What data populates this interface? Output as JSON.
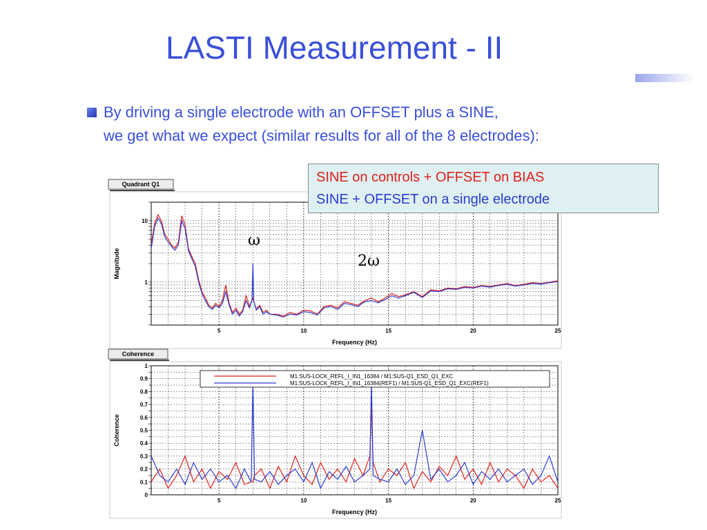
{
  "slide": {
    "title": "LASTI Measurement - II",
    "bullet_line1": "By driving a single electrode with an OFFSET plus a SINE,",
    "bullet_line2": "we get what we expect (similar results for all of the 8 electrodes):",
    "accent_color": "#3a4fd8"
  },
  "legend_box": {
    "line1": "SINE on controls  +  OFFSET on BIAS",
    "line2": "SINE + OFFSET on a single electrode",
    "line1_color": "#e0201b",
    "line2_color": "#2a3cd0",
    "background": "#dff0f2"
  },
  "annotations": {
    "omega": "ω",
    "two_omega": "2ω"
  },
  "chart_data": [
    {
      "type": "line",
      "tab": "Quadrant Q1",
      "xlabel": "Frequency (Hz)",
      "ylabel": "Magnitude",
      "xlim": [
        1,
        25
      ],
      "ylim": [
        0.2,
        20
      ],
      "yscale": "log",
      "grid": true,
      "x_ticks": [
        5,
        10,
        15,
        20,
        25
      ],
      "y_ticks": [
        {
          "v": 10,
          "label": "10"
        },
        {
          "v": 1,
          "label": "1"
        }
      ],
      "series": [
        {
          "color": "#e0201b",
          "x": [
            1.0,
            1.2,
            1.4,
            1.6,
            1.8,
            2.0,
            2.2,
            2.4,
            2.6,
            2.8,
            3.0,
            3.2,
            3.4,
            3.6,
            3.8,
            4.0,
            4.2,
            4.4,
            4.6,
            4.8,
            5.0,
            5.2,
            5.4,
            5.6,
            5.8,
            6.0,
            6.2,
            6.4,
            6.6,
            6.8,
            7.0,
            7.2,
            7.4,
            7.6,
            7.8,
            8.0,
            8.4,
            8.8,
            9.2,
            9.6,
            10.0,
            10.4,
            10.8,
            11.2,
            11.6,
            12.0,
            12.4,
            12.8,
            13.2,
            13.6,
            14.0,
            14.4,
            14.8,
            15.2,
            15.6,
            16.0,
            16.5,
            17.0,
            17.5,
            18.0,
            18.5,
            19.0,
            19.5,
            20.0,
            20.5,
            21.0,
            21.5,
            22.0,
            22.5,
            23.0,
            23.5,
            24.0,
            24.5,
            25.0
          ],
          "values": [
            4.0,
            9.0,
            12.5,
            10.0,
            6.0,
            5.0,
            4.0,
            3.6,
            4.5,
            12.0,
            8.5,
            3.5,
            2.6,
            2.0,
            1.1,
            0.7,
            0.55,
            0.42,
            0.38,
            0.45,
            0.4,
            0.5,
            0.9,
            0.45,
            0.32,
            0.38,
            0.3,
            0.35,
            0.6,
            0.4,
            0.55,
            0.36,
            0.42,
            0.32,
            0.35,
            0.3,
            0.3,
            0.28,
            0.32,
            0.3,
            0.35,
            0.34,
            0.3,
            0.4,
            0.42,
            0.38,
            0.48,
            0.45,
            0.42,
            0.5,
            0.55,
            0.48,
            0.55,
            0.65,
            0.58,
            0.62,
            0.7,
            0.58,
            0.75,
            0.72,
            0.8,
            0.78,
            0.85,
            0.82,
            0.88,
            0.85,
            0.9,
            0.95,
            0.88,
            0.92,
            0.98,
            0.95,
            1.0,
            1.05
          ]
        },
        {
          "color": "#2a3cd0",
          "x": [
            1.0,
            1.2,
            1.4,
            1.6,
            1.8,
            2.0,
            2.2,
            2.4,
            2.6,
            2.8,
            3.0,
            3.2,
            3.4,
            3.6,
            3.8,
            4.0,
            4.2,
            4.4,
            4.6,
            4.8,
            5.0,
            5.2,
            5.4,
            5.6,
            5.8,
            6.0,
            6.2,
            6.4,
            6.6,
            6.8,
            6.95,
            7.0,
            7.05,
            7.2,
            7.4,
            7.6,
            7.8,
            8.0,
            8.4,
            8.8,
            9.2,
            9.6,
            10.0,
            10.4,
            10.8,
            11.2,
            11.6,
            12.0,
            12.4,
            12.8,
            13.2,
            13.6,
            14.0,
            14.4,
            14.8,
            15.2,
            15.6,
            16.0,
            16.5,
            17.0,
            17.5,
            18.0,
            18.5,
            19.0,
            19.5,
            20.0,
            20.5,
            21.0,
            21.5,
            22.0,
            22.5,
            23.0,
            23.5,
            24.0,
            24.5,
            25.0
          ],
          "values": [
            3.5,
            8.0,
            11.0,
            9.0,
            5.5,
            4.5,
            3.8,
            3.3,
            4.0,
            10.0,
            7.5,
            3.2,
            2.4,
            1.8,
            1.0,
            0.65,
            0.5,
            0.4,
            0.36,
            0.42,
            0.38,
            0.45,
            0.7,
            0.42,
            0.3,
            0.35,
            0.28,
            0.33,
            0.5,
            0.38,
            0.5,
            2.0,
            0.5,
            0.35,
            0.4,
            0.3,
            0.33,
            0.3,
            0.29,
            0.27,
            0.3,
            0.29,
            0.33,
            0.32,
            0.29,
            0.38,
            0.4,
            0.36,
            0.45,
            0.43,
            0.4,
            0.48,
            0.5,
            0.46,
            0.52,
            0.6,
            0.55,
            0.6,
            0.68,
            0.56,
            0.72,
            0.7,
            0.78,
            0.76,
            0.82,
            0.8,
            0.86,
            0.83,
            0.88,
            0.92,
            0.86,
            0.9,
            0.95,
            0.93,
            0.98,
            1.02
          ]
        }
      ]
    },
    {
      "type": "line",
      "tab": "Coherence",
      "xlabel": "Frequency (Hz)",
      "ylabel": "Coherence",
      "xlim": [
        1,
        25
      ],
      "ylim": [
        0,
        1
      ],
      "grid": true,
      "x_ticks": [
        5,
        10,
        15,
        20,
        25
      ],
      "y_ticks": [
        {
          "v": 1,
          "label": "1"
        },
        {
          "v": 0.9,
          "label": "0.9"
        },
        {
          "v": 0.8,
          "label": "0.8"
        },
        {
          "v": 0.7,
          "label": "0.7"
        },
        {
          "v": 0.6,
          "label": "0.6"
        },
        {
          "v": 0.5,
          "label": "0.5"
        },
        {
          "v": 0.4,
          "label": "0.4"
        },
        {
          "v": 0.3,
          "label": "0.3"
        },
        {
          "v": 0.2,
          "label": "0.2"
        },
        {
          "v": 0.1,
          "label": "0.1"
        },
        {
          "v": 0,
          "label": "0"
        }
      ],
      "legend_position": "top",
      "series": [
        {
          "name": "M1:SUS-LOCK_REFL_I_IN1_16384 / M1:SUS-Q1_ESD_Q1_EXC",
          "color": "#e0201b",
          "x": [
            1.0,
            1.5,
            2.0,
            2.5,
            3.0,
            3.5,
            4.0,
            4.5,
            5.0,
            5.5,
            6.0,
            6.5,
            6.9,
            7.0,
            7.1,
            7.5,
            8.0,
            8.5,
            9.0,
            9.5,
            10.0,
            10.5,
            11.0,
            11.5,
            12.0,
            12.5,
            13.0,
            13.5,
            13.9,
            14.0,
            14.1,
            14.5,
            15.0,
            15.5,
            16.0,
            16.5,
            17.0,
            17.5,
            18.0,
            18.5,
            19.0,
            19.5,
            20.0,
            20.5,
            21.0,
            21.5,
            22.0,
            22.5,
            23.0,
            23.5,
            24.0,
            24.5,
            25.0
          ],
          "values": [
            0.1,
            0.2,
            0.05,
            0.15,
            0.3,
            0.1,
            0.2,
            0.05,
            0.18,
            0.12,
            0.25,
            0.08,
            0.1,
            0.1,
            0.15,
            0.2,
            0.05,
            0.22,
            0.1,
            0.3,
            0.15,
            0.08,
            0.25,
            0.12,
            0.2,
            0.1,
            0.28,
            0.15,
            0.3,
            0.7,
            0.25,
            0.1,
            0.2,
            0.15,
            0.25,
            0.05,
            0.18,
            0.1,
            0.22,
            0.15,
            0.3,
            0.12,
            0.2,
            0.08,
            0.25,
            0.1,
            0.2,
            0.15,
            0.05,
            0.2,
            0.1,
            0.15,
            0.05
          ]
        },
        {
          "name": "M1:SUS-LOCK_REFL_I_IN1_16384(REF1) / M1:SUS-Q1_ESD_Q1_EXC(REF1)",
          "color": "#2a3cd0",
          "x": [
            1.0,
            1.5,
            2.0,
            2.5,
            3.0,
            3.5,
            4.0,
            4.5,
            5.0,
            5.5,
            6.0,
            6.5,
            6.9,
            7.0,
            7.1,
            7.5,
            8.0,
            8.5,
            9.0,
            9.5,
            10.0,
            10.5,
            11.0,
            11.5,
            12.0,
            12.5,
            13.0,
            13.5,
            13.9,
            14.0,
            14.1,
            14.5,
            15.0,
            15.5,
            16.0,
            16.5,
            17.0,
            17.5,
            18.0,
            18.5,
            19.0,
            19.5,
            20.0,
            20.5,
            21.0,
            21.5,
            22.0,
            22.5,
            23.0,
            23.5,
            24.0,
            24.5,
            25.0
          ],
          "values": [
            0.3,
            0.15,
            0.1,
            0.2,
            0.08,
            0.25,
            0.12,
            0.2,
            0.1,
            0.15,
            0.05,
            0.2,
            0.1,
            0.88,
            0.12,
            0.1,
            0.18,
            0.08,
            0.15,
            0.2,
            0.1,
            0.25,
            0.05,
            0.18,
            0.12,
            0.22,
            0.1,
            0.15,
            0.2,
            0.88,
            0.15,
            0.12,
            0.1,
            0.2,
            0.08,
            0.15,
            0.5,
            0.12,
            0.2,
            0.1,
            0.15,
            0.25,
            0.08,
            0.18,
            0.12,
            0.2,
            0.1,
            0.15,
            0.2,
            0.08,
            0.15,
            0.3,
            0.1
          ]
        }
      ]
    }
  ]
}
